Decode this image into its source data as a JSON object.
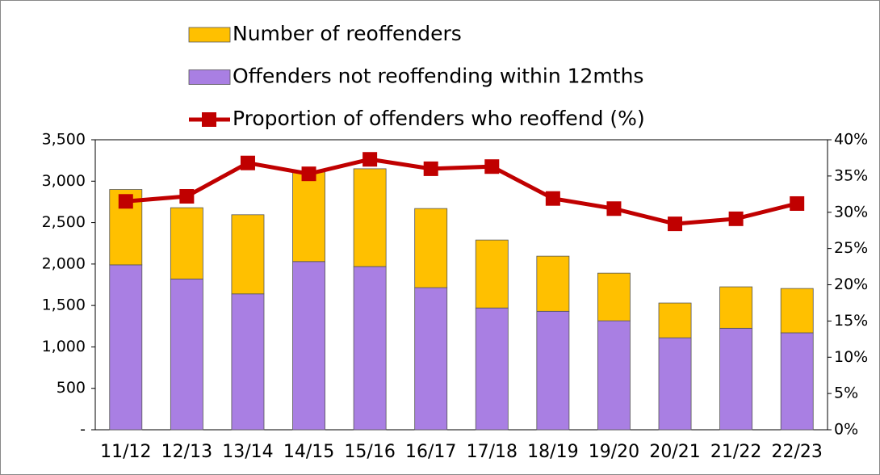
{
  "chart_data": {
    "type": "bar-line",
    "categories": [
      "11/12",
      "12/13",
      "13/14",
      "14/15",
      "15/16",
      "16/17",
      "17/18",
      "18/19",
      "19/20",
      "20/21",
      "21/22",
      "22/23"
    ],
    "series": [
      {
        "name": "Number of reoffenders",
        "type": "bar",
        "color": "#ffc000",
        "values": [
          910,
          860,
          955,
          1080,
          1180,
          955,
          820,
          665,
          575,
          420,
          500,
          535
        ]
      },
      {
        "name": "Offenders not reoffending within 12mths",
        "type": "bar",
        "color": "#a97fe3",
        "values": [
          1990,
          1820,
          1640,
          2030,
          1970,
          1715,
          1470,
          1430,
          1315,
          1110,
          1225,
          1170
        ]
      },
      {
        "name": "Proportion of offenders who reoffend (%)",
        "type": "line",
        "axis": "y2",
        "color": "#c00000",
        "values": [
          31.5,
          32.2,
          36.8,
          35.3,
          37.3,
          36.0,
          36.3,
          31.9,
          30.5,
          28.4,
          29.1,
          31.2
        ]
      }
    ],
    "ylim": [
      0,
      3500
    ],
    "yticks": [
      {
        "value": 0,
        "label": "-"
      },
      500,
      {
        "value": 1000,
        "label": "1,000"
      },
      {
        "value": 1500,
        "label": "1,500"
      },
      {
        "value": 2000,
        "label": "2,000"
      },
      {
        "value": 2500,
        "label": "2,500"
      },
      {
        "value": 3000,
        "label": "3,000"
      },
      {
        "value": 3500,
        "label": "3,500"
      }
    ],
    "y2lim": [
      0,
      40
    ],
    "y2ticks": [
      {
        "value": 0,
        "label": "0%"
      },
      {
        "value": 5,
        "label": "5%"
      },
      {
        "value": 10,
        "label": "10%"
      },
      {
        "value": 15,
        "label": "15%"
      },
      {
        "value": 20,
        "label": "20%"
      },
      {
        "value": 25,
        "label": "25%"
      },
      {
        "value": 30,
        "label": "30%"
      },
      {
        "value": 35,
        "label": "35%"
      },
      {
        "value": 40,
        "label": "40%"
      }
    ],
    "grid": false
  }
}
